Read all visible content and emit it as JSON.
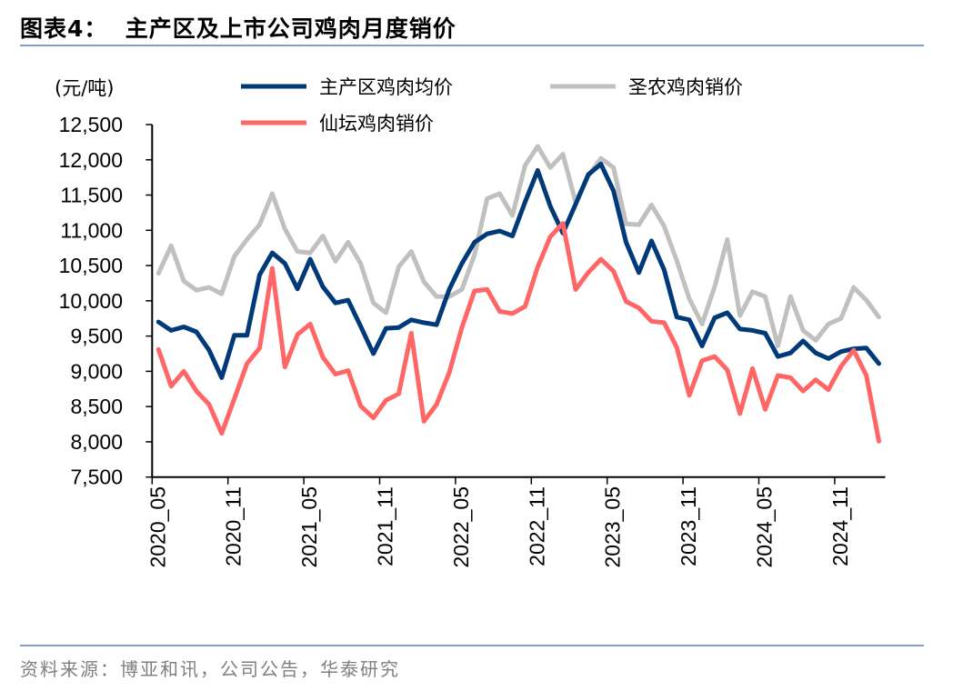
{
  "title": "图表4：  主产区及上市公司鸡肉月度销价",
  "source": "资料来源：博亚和讯，公司公告，华泰研究",
  "colors": {
    "rule": "#5B7DB8"
  },
  "chart_data": {
    "type": "line",
    "title": "",
    "unit_label": "(元/吨)",
    "ylim": [
      7500,
      12500
    ],
    "yticks": [
      7500,
      8000,
      8500,
      9000,
      9500,
      10000,
      10500,
      11000,
      11500,
      12000,
      12500
    ],
    "ytick_labels": [
      "7,500",
      "8,000",
      "8,500",
      "9,000",
      "9,500",
      "10,000",
      "10,500",
      "11,000",
      "11,500",
      "12,000",
      "12,500"
    ],
    "grid": false,
    "legend_position": "top",
    "categories": [
      "2020_05",
      "2020_06",
      "2020_07",
      "2020_08",
      "2020_09",
      "2020_10",
      "2020_11",
      "2020_12",
      "2021_01",
      "2021_02",
      "2021_03",
      "2021_04",
      "2021_05",
      "2021_06",
      "2021_07",
      "2021_08",
      "2021_09",
      "2021_10",
      "2021_11",
      "2021_12",
      "2022_01",
      "2022_02",
      "2022_03",
      "2022_04",
      "2022_05",
      "2022_06",
      "2022_07",
      "2022_08",
      "2022_09",
      "2022_10",
      "2022_11",
      "2022_12",
      "2023_01",
      "2023_02",
      "2023_03",
      "2023_04",
      "2023_05",
      "2023_06",
      "2023_07",
      "2023_08",
      "2023_09",
      "2023_10",
      "2023_11",
      "2023_12",
      "2024_01",
      "2024_02",
      "2024_03",
      "2024_04",
      "2024_05",
      "2024_06",
      "2024_07",
      "2024_08",
      "2024_09",
      "2024_10",
      "2024_11",
      "2024_12",
      "2025_01",
      "2025_02"
    ],
    "xtick_labels": [
      "2020_05",
      "2020_11",
      "2021_05",
      "2021_11",
      "2022_05",
      "2022_11",
      "2023_05",
      "2023_11",
      "2024_05",
      "2024_11"
    ],
    "series": [
      {
        "name": "主产区鸡肉均价",
        "color": "#003A78",
        "values": [
          9700,
          9580,
          9630,
          9560,
          9300,
          8910,
          9510,
          9510,
          10370,
          10680,
          10530,
          10170,
          10590,
          10200,
          9970,
          10010,
          9640,
          9250,
          9610,
          9620,
          9730,
          9690,
          9660,
          10160,
          10530,
          10830,
          10950,
          10990,
          10920,
          11400,
          11850,
          11340,
          10960,
          11370,
          11790,
          11940,
          11560,
          10830,
          10400,
          10850,
          10440,
          9770,
          9730,
          9360,
          9760,
          9830,
          9600,
          9580,
          9540,
          9210,
          9260,
          9430,
          9260,
          9180,
          9280,
          9320,
          9330,
          9110
        ]
      },
      {
        "name": "圣农鸡肉销价",
        "color": "#C0C0C0",
        "values": [
          10390,
          10780,
          10280,
          10150,
          10190,
          10100,
          10630,
          10870,
          11080,
          11520,
          11020,
          10700,
          10680,
          10920,
          10560,
          10830,
          10530,
          9970,
          9830,
          10480,
          10700,
          10270,
          10060,
          10060,
          10160,
          10650,
          11450,
          11520,
          11210,
          11920,
          12190,
          11890,
          12080,
          11400,
          11770,
          12020,
          11890,
          11090,
          11080,
          11360,
          11060,
          10570,
          10030,
          9670,
          10200,
          10870,
          9790,
          10130,
          10060,
          9360,
          10060,
          9580,
          9440,
          9670,
          9750,
          10190,
          10010,
          9770
        ]
      },
      {
        "name": "仙坛鸡肉销价",
        "color": "#FF6666",
        "values": [
          9310,
          8790,
          9000,
          8720,
          8530,
          8120,
          8610,
          9110,
          9330,
          10460,
          9060,
          9520,
          9670,
          9200,
          8960,
          9010,
          8510,
          8340,
          8590,
          8680,
          9540,
          8290,
          8530,
          8980,
          9620,
          10140,
          10160,
          9850,
          9820,
          9920,
          10480,
          10910,
          11100,
          10160,
          10400,
          10590,
          10420,
          9990,
          9900,
          9710,
          9690,
          9340,
          8660,
          9150,
          9210,
          9020,
          8400,
          9040,
          8460,
          8940,
          8910,
          8720,
          8880,
          8740,
          9070,
          9300,
          8940,
          8010
        ]
      }
    ]
  }
}
